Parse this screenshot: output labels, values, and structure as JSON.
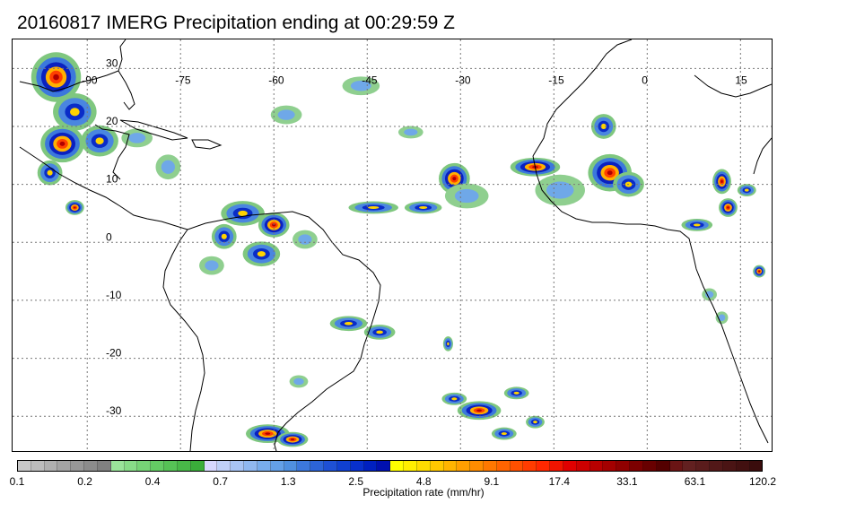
{
  "title": "20160817 IMERG Precipitation ending at 00:29:59 Z",
  "map": {
    "lon_range": [
      -102,
      20
    ],
    "lat_range": [
      -36,
      35
    ],
    "lon_gridlines": [
      -90,
      -75,
      -60,
      -45,
      -30,
      -15,
      0,
      15
    ],
    "lat_gridlines": [
      30,
      20,
      10,
      0,
      -10,
      -20,
      -30
    ],
    "lon_labels": [
      "-90",
      "-75",
      "-60",
      "-45",
      "-30",
      "-15",
      "0",
      "15"
    ],
    "lat_labels": [
      "30",
      "20",
      "10",
      "0",
      "-10",
      "-20",
      "-30"
    ],
    "grid": "dotted"
  },
  "colorbar": {
    "label": "Precipitation rate (mm/hr)",
    "tick_labels": [
      "0.1",
      "0.2",
      "0.4",
      "0.7",
      "1.3",
      "2.5",
      "4.8",
      "9.1",
      "17.4",
      "33.1",
      "63.1",
      "120.2"
    ],
    "colors": [
      "#c8c8c8",
      "#bcbcbc",
      "#b0b0b0",
      "#a4a4a4",
      "#989898",
      "#8c8c8c",
      "#808080",
      "#9ae49a",
      "#88dc88",
      "#76d476",
      "#64cc64",
      "#56c256",
      "#48b848",
      "#3aae3a",
      "#d8d8ff",
      "#c0d0f8",
      "#a8c4f4",
      "#90b8f0",
      "#78acec",
      "#64a0e8",
      "#5090e0",
      "#3c78dc",
      "#2c64d8",
      "#1e50d4",
      "#1040d0",
      "#0830cc",
      "#0020c0",
      "#0010b0",
      "#ffff00",
      "#ffee00",
      "#ffdc00",
      "#ffc800",
      "#ffb400",
      "#ffa000",
      "#ff8c00",
      "#ff7800",
      "#ff6400",
      "#ff5000",
      "#ff3c00",
      "#ff2800",
      "#f01400",
      "#e00000",
      "#cc0000",
      "#b80000",
      "#a40000",
      "#900000",
      "#7c0000",
      "#680000",
      "#540000",
      "#6a1414",
      "#622020",
      "#5a1c1c",
      "#521818",
      "#4a1414",
      "#421010",
      "#3a0c0c"
    ]
  },
  "precip_features": [
    {
      "lon": -95.0,
      "lat": 28.5,
      "rx": 4.0,
      "ry": 4.0,
      "level": "heavy"
    },
    {
      "lon": -92.0,
      "lat": 22.5,
      "rx": 3.5,
      "ry": 3.0,
      "level": "moderate"
    },
    {
      "lon": -94.0,
      "lat": 17.0,
      "rx": 3.5,
      "ry": 3.0,
      "level": "heavy"
    },
    {
      "lon": -88.0,
      "lat": 17.5,
      "rx": 3.0,
      "ry": 2.5,
      "level": "moderate"
    },
    {
      "lon": -96.0,
      "lat": 12.0,
      "rx": 2.0,
      "ry": 2.0,
      "level": "moderate"
    },
    {
      "lon": -92.0,
      "lat": 6.0,
      "rx": 1.5,
      "ry": 1.2,
      "level": "heavy"
    },
    {
      "lon": -82.0,
      "lat": 18.0,
      "rx": 2.5,
      "ry": 1.5,
      "level": "light"
    },
    {
      "lon": -77.0,
      "lat": 13.0,
      "rx": 2.0,
      "ry": 2.0,
      "level": "light"
    },
    {
      "lon": -65.0,
      "lat": 5.0,
      "rx": 3.5,
      "ry": 2.0,
      "level": "moderate"
    },
    {
      "lon": -60.0,
      "lat": 3.0,
      "rx": 2.5,
      "ry": 2.0,
      "level": "heavy"
    },
    {
      "lon": -68.0,
      "lat": 1.0,
      "rx": 2.0,
      "ry": 2.0,
      "level": "moderate"
    },
    {
      "lon": -62.0,
      "lat": -2.0,
      "rx": 3.0,
      "ry": 2.0,
      "level": "moderate"
    },
    {
      "lon": -70.0,
      "lat": -4.0,
      "rx": 2.0,
      "ry": 1.5,
      "level": "light"
    },
    {
      "lon": -55.0,
      "lat": 0.5,
      "rx": 2.0,
      "ry": 1.5,
      "level": "light"
    },
    {
      "lon": -48.0,
      "lat": -14.0,
      "rx": 3.0,
      "ry": 1.2,
      "level": "moderate"
    },
    {
      "lon": -43.0,
      "lat": -15.5,
      "rx": 2.5,
      "ry": 1.2,
      "level": "moderate"
    },
    {
      "lon": -44.0,
      "lat": 6.0,
      "rx": 4.0,
      "ry": 1.0,
      "level": "moderate"
    },
    {
      "lon": -36.0,
      "lat": 6.0,
      "rx": 3.0,
      "ry": 1.0,
      "level": "moderate"
    },
    {
      "lon": -31.0,
      "lat": 11.0,
      "rx": 2.5,
      "ry": 2.5,
      "level": "heavy"
    },
    {
      "lon": -29.0,
      "lat": 8.0,
      "rx": 3.5,
      "ry": 2.0,
      "level": "light"
    },
    {
      "lon": -18.0,
      "lat": 13.0,
      "rx": 4.0,
      "ry": 1.5,
      "level": "heavy"
    },
    {
      "lon": -14.0,
      "lat": 9.0,
      "rx": 4.0,
      "ry": 2.5,
      "level": "light"
    },
    {
      "lon": -6.0,
      "lat": 12.0,
      "rx": 3.5,
      "ry": 3.0,
      "level": "heavy"
    },
    {
      "lon": -3.0,
      "lat": 10.0,
      "rx": 2.5,
      "ry": 2.0,
      "level": "moderate"
    },
    {
      "lon": -7.0,
      "lat": 20.0,
      "rx": 2.0,
      "ry": 2.0,
      "level": "moderate"
    },
    {
      "lon": 12.0,
      "lat": 10.5,
      "rx": 1.5,
      "ry": 2.0,
      "level": "heavy"
    },
    {
      "lon": 13.0,
      "lat": 6.0,
      "rx": 1.5,
      "ry": 1.5,
      "level": "heavy"
    },
    {
      "lon": 16.0,
      "lat": 9.0,
      "rx": 1.5,
      "ry": 1.0,
      "level": "moderate"
    },
    {
      "lon": 8.0,
      "lat": 3.0,
      "rx": 2.5,
      "ry": 1.0,
      "level": "moderate"
    },
    {
      "lon": 18.0,
      "lat": -5.0,
      "rx": 1.0,
      "ry": 1.0,
      "level": "heavy"
    },
    {
      "lon": 10.0,
      "lat": -9.0,
      "rx": 1.2,
      "ry": 1.0,
      "level": "light"
    },
    {
      "lon": 12.0,
      "lat": -13.0,
      "rx": 1.0,
      "ry": 1.0,
      "level": "light"
    },
    {
      "lon": -61.0,
      "lat": -33.0,
      "rx": 3.5,
      "ry": 1.5,
      "level": "heavy"
    },
    {
      "lon": -57.0,
      "lat": -34.0,
      "rx": 2.5,
      "ry": 1.2,
      "level": "heavy"
    },
    {
      "lon": -27.0,
      "lat": -29.0,
      "rx": 3.5,
      "ry": 1.5,
      "level": "heavy"
    },
    {
      "lon": -31.0,
      "lat": -27.0,
      "rx": 2.0,
      "ry": 1.0,
      "level": "moderate"
    },
    {
      "lon": -23.0,
      "lat": -33.0,
      "rx": 2.0,
      "ry": 1.0,
      "level": "moderate"
    },
    {
      "lon": -21.0,
      "lat": -26.0,
      "rx": 2.0,
      "ry": 1.0,
      "level": "moderate"
    },
    {
      "lon": -18.0,
      "lat": -31.0,
      "rx": 1.5,
      "ry": 1.0,
      "level": "moderate"
    },
    {
      "lon": -32.0,
      "lat": -17.5,
      "rx": 0.8,
      "ry": 1.2,
      "level": "moderate"
    },
    {
      "lon": -46.0,
      "lat": 27.0,
      "rx": 3.0,
      "ry": 1.5,
      "level": "light"
    },
    {
      "lon": -58.0,
      "lat": 22.0,
      "rx": 2.5,
      "ry": 1.5,
      "level": "light"
    },
    {
      "lon": -56.0,
      "lat": -24.0,
      "rx": 1.5,
      "ry": 1.0,
      "level": "light"
    },
    {
      "lon": -38.0,
      "lat": 19.0,
      "rx": 2.0,
      "ry": 1.0,
      "level": "light"
    }
  ]
}
